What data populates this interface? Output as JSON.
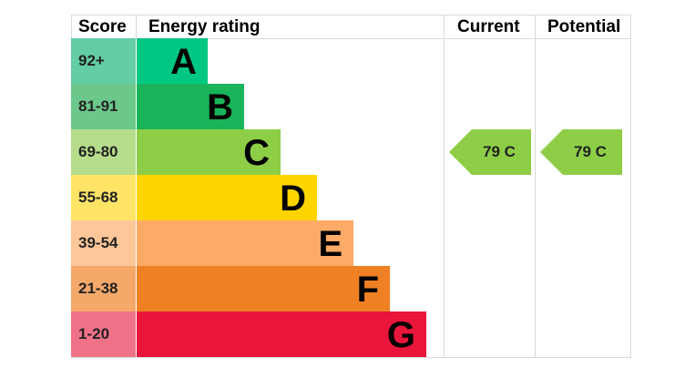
{
  "headers": {
    "score": "Score",
    "energy_rating": "Energy rating",
    "current": "Current",
    "potential": "Potential"
  },
  "bands": [
    {
      "score": "92+",
      "letter": "A",
      "color": "#00c781",
      "score_bg": "#63cda3"
    },
    {
      "score": "81-91",
      "letter": "B",
      "color": "#19b459",
      "score_bg": "#6bc88a"
    },
    {
      "score": "69-80",
      "letter": "C",
      "color": "#8dce46",
      "score_bg": "#b6dd8b"
    },
    {
      "score": "55-68",
      "letter": "D",
      "color": "#ffd500",
      "score_bg": "#ffe466"
    },
    {
      "score": "39-54",
      "letter": "E",
      "color": "#fcaa65",
      "score_bg": "#fdc79a"
    },
    {
      "score": "21-38",
      "letter": "F",
      "color": "#ef8023",
      "score_bg": "#f4a86a"
    },
    {
      "score": "1-20",
      "letter": "G",
      "color": "#e9153b",
      "score_bg": "#f07288"
    }
  ],
  "current": {
    "label": "79 C",
    "band": "C",
    "color": "#8dce46"
  },
  "potential": {
    "label": "79 C",
    "band": "C",
    "color": "#8dce46"
  }
}
